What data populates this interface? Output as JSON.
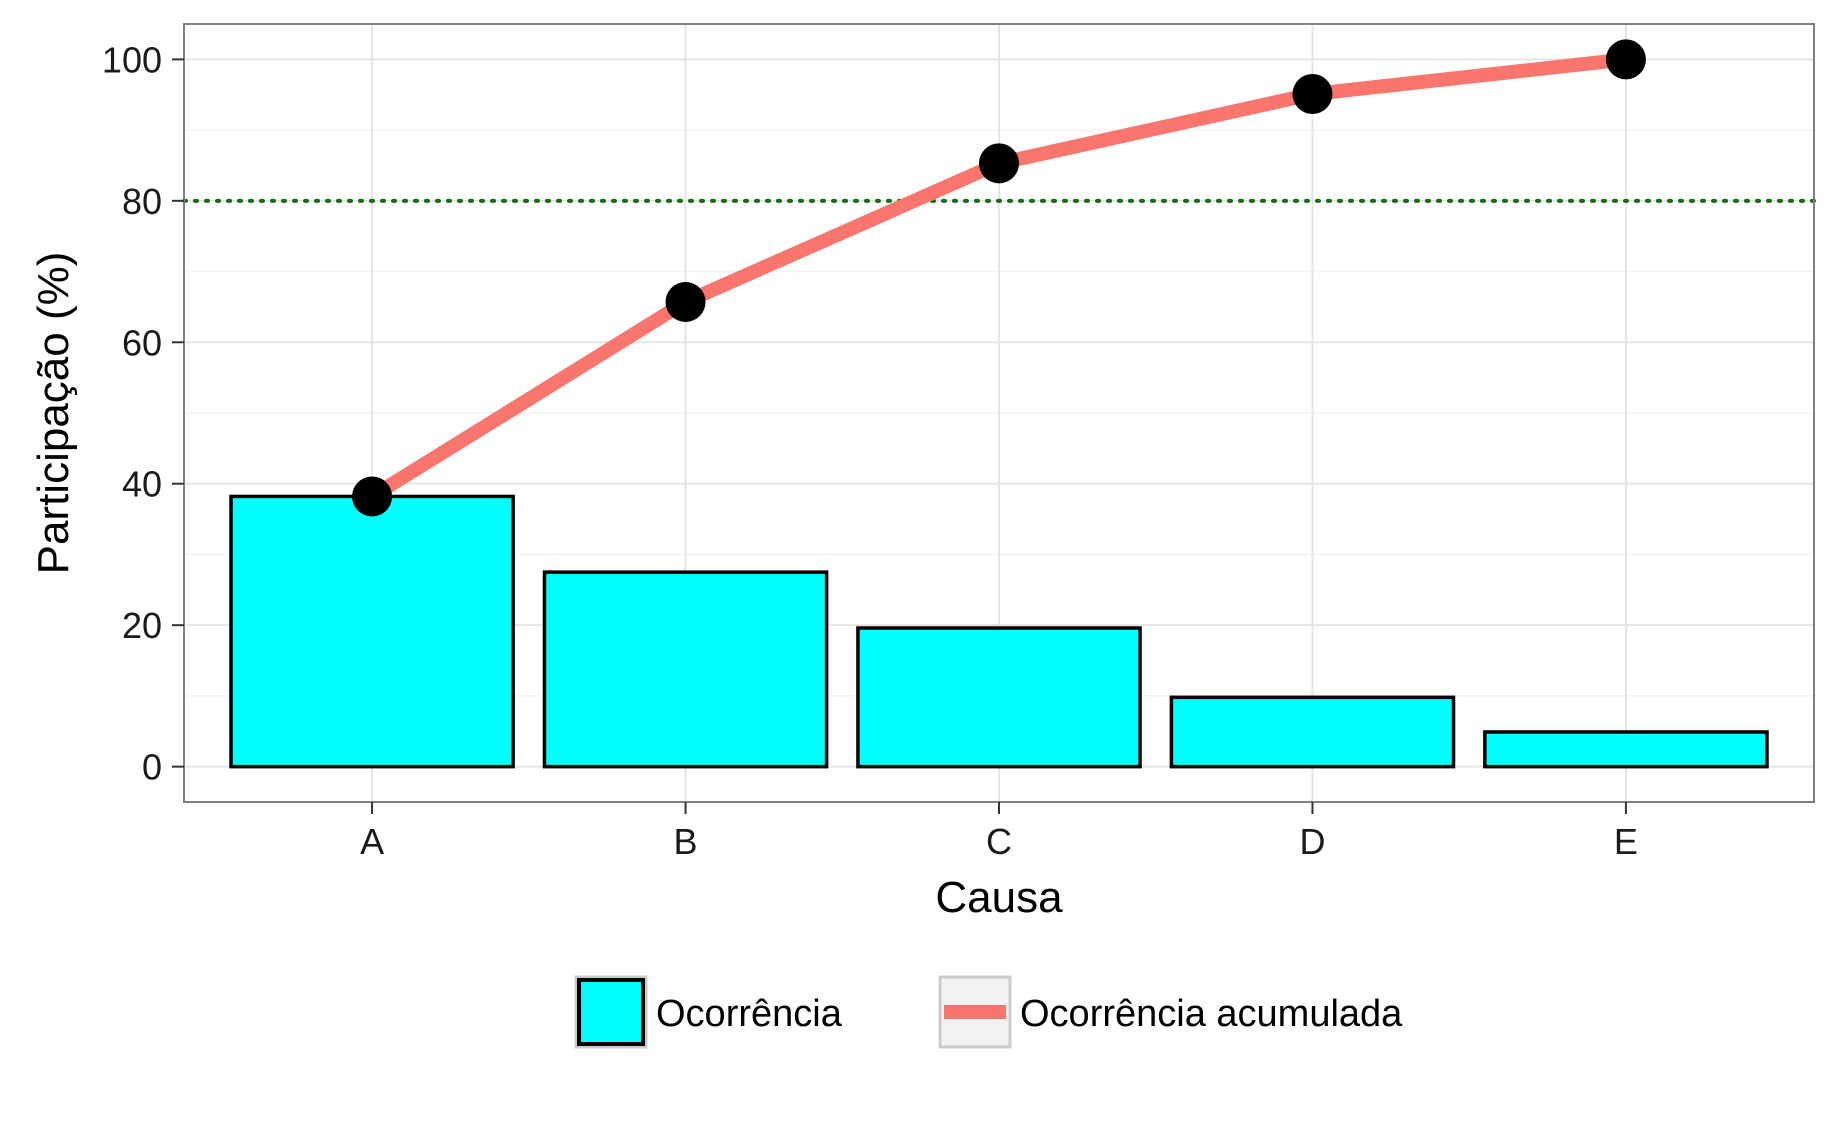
{
  "chart_data": {
    "type": "bar",
    "categories": [
      "A",
      "B",
      "C",
      "D",
      "E"
    ],
    "series": [
      {
        "name": "Ocorrência",
        "kind": "bar",
        "values": [
          38.2,
          27.5,
          19.6,
          9.8,
          4.9
        ]
      },
      {
        "name": "Ocorrência acumulada",
        "kind": "line",
        "values": [
          38.2,
          65.7,
          85.3,
          95.1,
          100.0
        ]
      }
    ],
    "reference_line": {
      "y": 80,
      "style": "dotted",
      "color": "#1b6b1b"
    },
    "xlabel": "Causa",
    "ylabel": "Participação (%)",
    "ylim": [
      -5,
      105
    ],
    "yticks": [
      0,
      20,
      40,
      60,
      80,
      100
    ],
    "grid": true,
    "legend_position": "bottom",
    "colors": {
      "bar_fill": "#00ffff",
      "bar_stroke": "#000000",
      "line": "#f8766d",
      "point": "#000000"
    }
  }
}
